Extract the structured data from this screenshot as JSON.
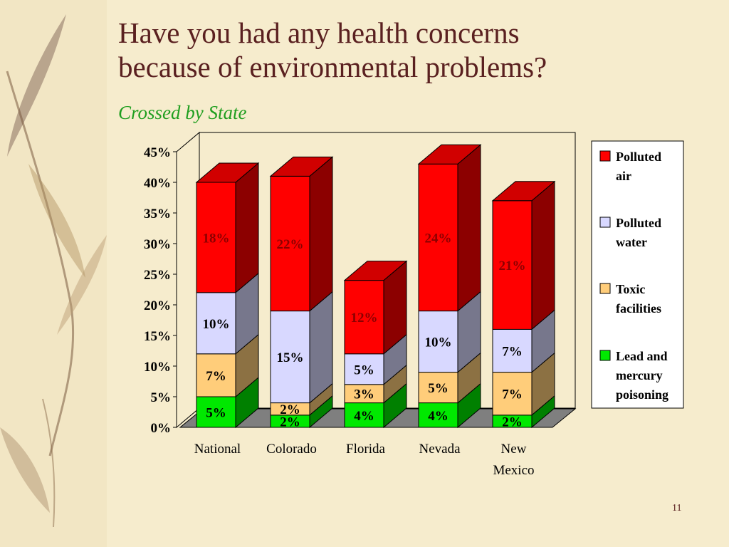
{
  "slide": {
    "title_line1": "Have you had any health concerns",
    "title_line2": "because of environmental problems?",
    "subtitle": "Crossed by State",
    "page_number": "11"
  },
  "chart_data": {
    "type": "bar",
    "stacked": true,
    "three_d": true,
    "categories": [
      "National",
      "Colorado",
      "Florida",
      "Nevada",
      "New Mexico"
    ],
    "series": [
      {
        "name": "Lead and mercury poisoning",
        "values": [
          5,
          2,
          4,
          4,
          2
        ],
        "color": "#00e800"
      },
      {
        "name": "Toxic facilities",
        "values": [
          7,
          2,
          3,
          5,
          7
        ],
        "color": "#ffcd7a"
      },
      {
        "name": "Polluted water",
        "values": [
          10,
          15,
          5,
          10,
          7
        ],
        "color": "#d8d8ff"
      },
      {
        "name": "Polluted air",
        "values": [
          18,
          22,
          12,
          24,
          21
        ],
        "color": "#ff0000"
      }
    ],
    "data_labels": [
      [
        "5%",
        "2%",
        "4%",
        "4%",
        "2%"
      ],
      [
        "7%",
        "2%",
        "3%",
        "5%",
        "7%"
      ],
      [
        "10%",
        "15%",
        "5%",
        "10%",
        "7%"
      ],
      [
        "18%",
        "22%",
        "12%",
        "24%",
        "21%"
      ]
    ],
    "y_ticks": [
      "0%",
      "5%",
      "10%",
      "15%",
      "20%",
      "25%",
      "30%",
      "35%",
      "40%",
      "45%"
    ],
    "ylim": [
      0,
      45
    ],
    "legend_position": "right",
    "legend_order": [
      "Polluted air",
      "Polluted water",
      "Toxic facilities",
      "Lead and mercury poisoning"
    ],
    "grid": false
  }
}
